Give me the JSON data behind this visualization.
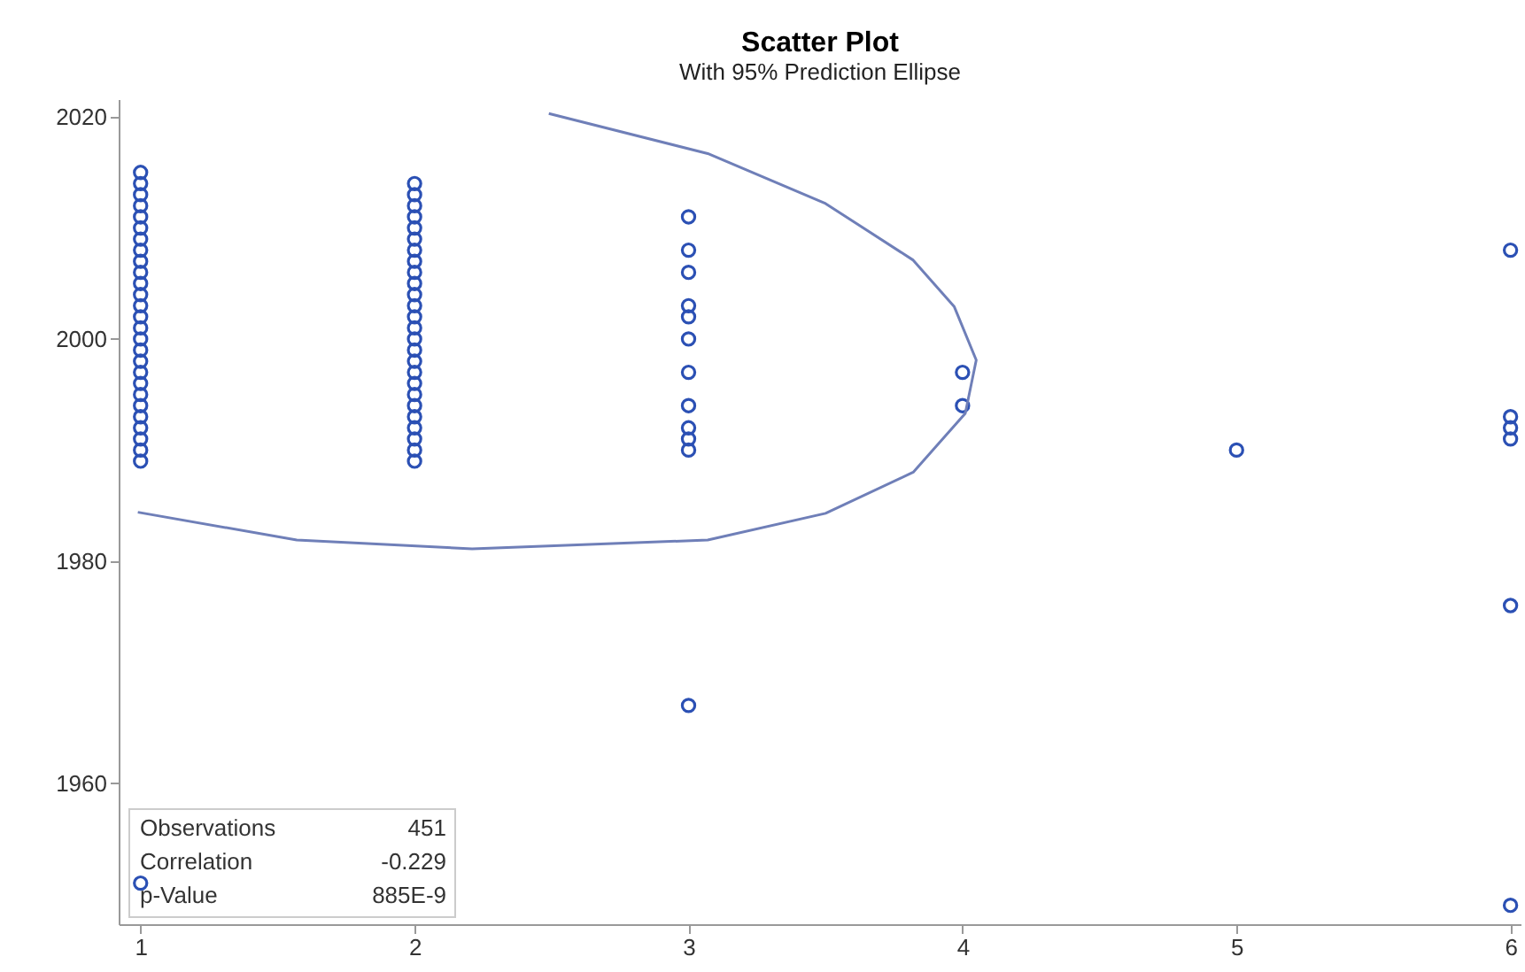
{
  "chart_data": {
    "type": "scatter",
    "title": "Scatter Plot",
    "subtitle": "With 95% Prediction Ellipse",
    "xlim": [
      0.92,
      6.04
    ],
    "xticks": [
      1,
      2,
      3,
      4,
      5,
      6
    ],
    "ylim": [
      1947.3,
      2021.6
    ],
    "yticks": [
      1960,
      1980,
      2000,
      2020
    ],
    "grid": false,
    "annotations": [
      "Observations",
      "451",
      "Correlation",
      "-0.229",
      "p-Value",
      "885E-9"
    ],
    "series": [
      {
        "marker": "circle",
        "color": "#2b50b4",
        "x": [
          1,
          1,
          1,
          1,
          1,
          1,
          1,
          1,
          1,
          1,
          1,
          1,
          1,
          1,
          1,
          1,
          1,
          1,
          1,
          1,
          1,
          1,
          1,
          1,
          1,
          1,
          1,
          1,
          2,
          2,
          2,
          2,
          2,
          2,
          2,
          2,
          2,
          2,
          2,
          2,
          2,
          2,
          2,
          2,
          2,
          2,
          2,
          2,
          2,
          2,
          2,
          2,
          2,
          2,
          3,
          3,
          3,
          3,
          3,
          3,
          3,
          3,
          3,
          3,
          3,
          3,
          4,
          4,
          5,
          6,
          6,
          6,
          6,
          6,
          6
        ],
        "values": [
          2015,
          2014,
          2013,
          2012,
          2011,
          2010,
          2009,
          2008,
          2007,
          2006,
          2005,
          2004,
          2003,
          2002,
          2001,
          2000,
          1999,
          1998,
          1997,
          1996,
          1995,
          1994,
          1993,
          1992,
          1991,
          1990,
          1989,
          1951,
          2014,
          2013,
          2012,
          2011,
          2010,
          2009,
          2008,
          2007,
          2006,
          2005,
          2004,
          2003,
          2002,
          2001,
          2000,
          1999,
          1998,
          1997,
          1996,
          1995,
          1994,
          1993,
          1992,
          1991,
          1990,
          1989,
          2011,
          2008,
          2006,
          2003,
          2002,
          2000,
          1997,
          1994,
          1992,
          1991,
          1990,
          1967,
          1997,
          1994,
          1990,
          2008,
          1993,
          1992,
          1991,
          1976,
          1949
        ]
      },
      {
        "type": "line",
        "color": "#6f7fb8",
        "x": [
          2.49,
          3.07,
          3.5,
          3.82,
          3.97,
          4.05,
          4.01,
          3.82,
          3.5,
          3.07,
          2.21,
          1.57,
          0.99
        ],
        "values": [
          2020.3,
          2016.7,
          2012.2,
          2007.1,
          2002.9,
          1998.1,
          1993.3,
          1988.0,
          1984.3,
          1981.9,
          1981.1,
          1981.9,
          1984.4
        ]
      }
    ]
  }
}
